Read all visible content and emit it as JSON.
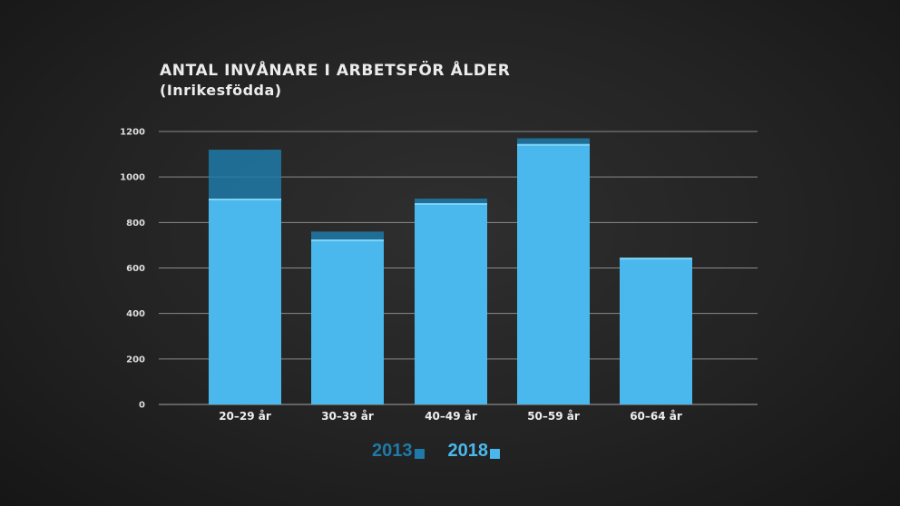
{
  "colors": {
    "series_2013": "#1e7aa8",
    "series_2018": "#4ab8ec",
    "grid": "#8a8a8a",
    "text": "#ececec"
  },
  "chart_data": {
    "type": "bar",
    "title": "ANTAL INVÅNARE I ARBETSFÖR ÅLDER",
    "subtitle": "(Inrikesfödda)",
    "categories": [
      "20–29 år",
      "30–39 år",
      "40–49 år",
      "50–59 år",
      "60–64 år"
    ],
    "series": [
      {
        "name": "2013",
        "values": [
          1120,
          760,
          905,
          1170,
          645
        ]
      },
      {
        "name": "2018",
        "values": [
          905,
          725,
          885,
          1145,
          645
        ]
      }
    ],
    "ylim": [
      0,
      1200
    ],
    "yticks": [
      0,
      200,
      400,
      600,
      800,
      1000,
      1200
    ],
    "grid": true,
    "legend": "bottom-center"
  }
}
